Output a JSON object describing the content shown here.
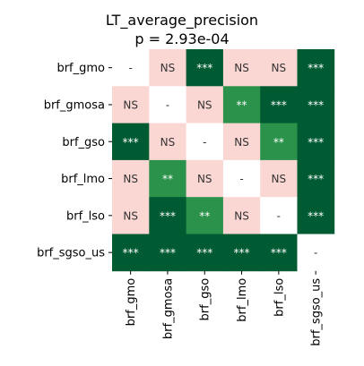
{
  "chart_data": {
    "type": "heatmap",
    "title": "LT_average_precision",
    "subtitle": "p = 2.93e-04",
    "rows": [
      "brf_gmo",
      "brf_gmosa",
      "brf_gso",
      "brf_lmo",
      "brf_lso",
      "brf_sgso_us"
    ],
    "columns": [
      "brf_gmo",
      "brf_gmosa",
      "brf_gso",
      "brf_lmo",
      "brf_lso",
      "brf_sgso_us"
    ],
    "cells": [
      [
        "-",
        "NS",
        "***",
        "NS",
        "NS",
        "***"
      ],
      [
        "NS",
        "-",
        "NS",
        "**",
        "***",
        "***"
      ],
      [
        "***",
        "NS",
        "-",
        "NS",
        "**",
        "***"
      ],
      [
        "NS",
        "**",
        "NS",
        "-",
        "NS",
        "***"
      ],
      [
        "NS",
        "***",
        "**",
        "NS",
        "-",
        "***"
      ],
      [
        "***",
        "***",
        "***",
        "***",
        "***",
        "-"
      ]
    ],
    "colors": {
      "-": "#ffffff",
      "NS": "#fbd7d4",
      "*": "#5ab870",
      "**": "#2a924a",
      "***": "#005a32"
    },
    "text_colors": {
      "-": "#333333",
      "NS": "#333333",
      "*": "#ffffff",
      "**": "#ffffff",
      "***": "#ffffff"
    }
  }
}
